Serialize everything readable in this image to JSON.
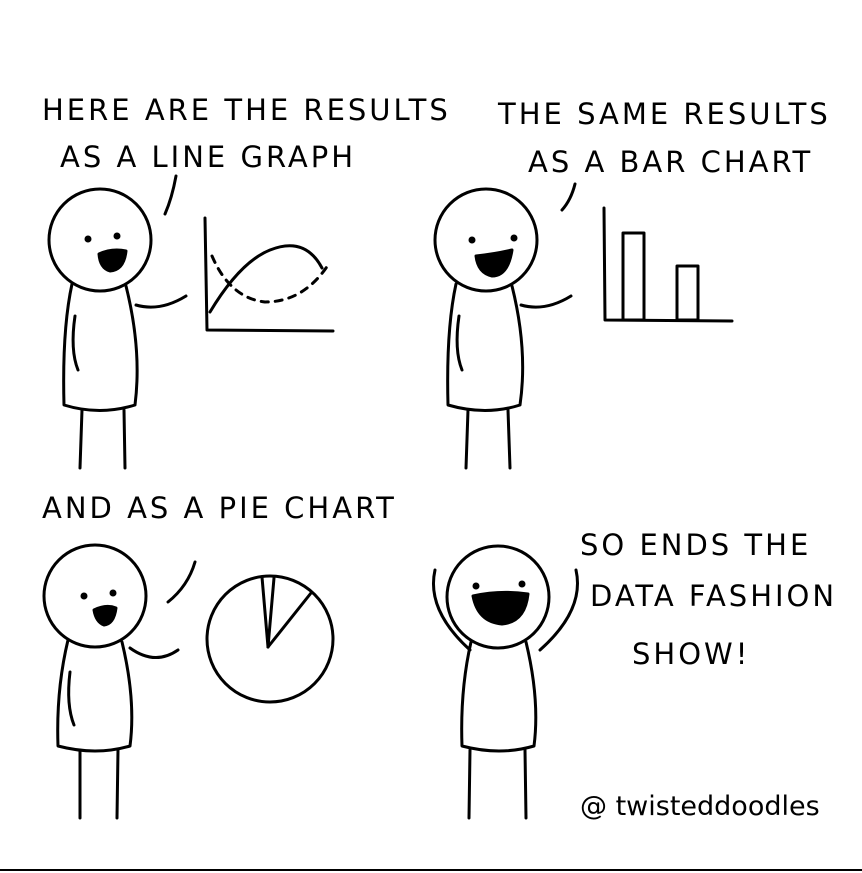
{
  "panels": [
    {
      "caption_lines": [
        "HERE ARE THE RESULTS",
        "AS A LINE GRAPH"
      ]
    },
    {
      "caption_lines": [
        "THE SAME RESULTS",
        "AS A BAR CHART"
      ]
    },
    {
      "caption_lines": [
        "AND AS A PIE CHART"
      ]
    },
    {
      "caption_lines": [
        "SO ENDS THE",
        "DATA FASHION",
        "SHOW!"
      ]
    }
  ],
  "credit": "@ twisteddoodles",
  "colors": {
    "ink": "#000000",
    "background": "#ffffff"
  }
}
